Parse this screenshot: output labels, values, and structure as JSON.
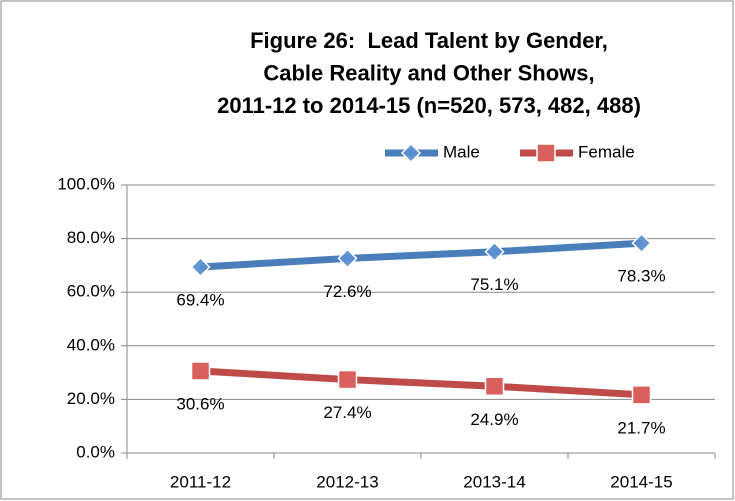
{
  "chart_data": {
    "type": "line",
    "title": [
      "Figure 26:  Lead Talent by Gender,",
      "Cable Reality and Other Shows,",
      "2011-12 to 2014-15 (n=520, 573, 482, 488)"
    ],
    "categories": [
      "2011-12",
      "2012-13",
      "2013-14",
      "2014-15"
    ],
    "series": [
      {
        "name": "Male",
        "color": "#4a7ebb",
        "values": [
          69.4,
          72.6,
          75.1,
          78.3
        ],
        "value_labels": [
          "69.4%",
          "72.6%",
          "75.1%",
          "78.3%"
        ]
      },
      {
        "name": "Female",
        "color": "#be4b48",
        "values": [
          30.6,
          27.4,
          24.9,
          21.7
        ],
        "value_labels": [
          "30.6%",
          "27.4%",
          "24.9%",
          "21.7%"
        ]
      }
    ],
    "ylim": [
      0,
      100
    ],
    "yticks": [
      {
        "value": 0,
        "label": "0.0%"
      },
      {
        "value": 20,
        "label": "20.0%"
      },
      {
        "value": 40,
        "label": "40.0%"
      },
      {
        "value": 60,
        "label": "60.0%"
      },
      {
        "value": 80,
        "label": "80.0%"
      },
      {
        "value": 100,
        "label": "100.0%"
      }
    ],
    "grid": true,
    "legend": "top"
  }
}
